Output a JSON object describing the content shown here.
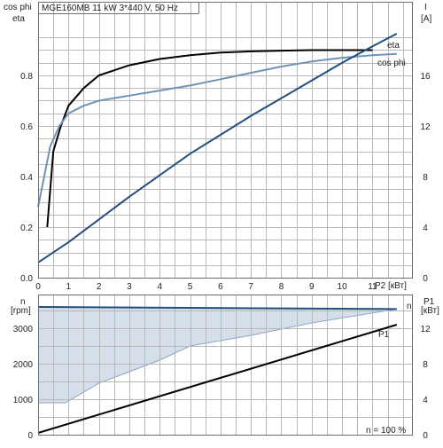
{
  "chart_data": [
    {
      "type": "line",
      "title": "MGE160MB   11 kW   3*440 V, 50 Hz",
      "xlabel": "P2 [кВт]",
      "ylabel_left": [
        "cos phi",
        "eta"
      ],
      "ylabel_right": [
        "I",
        "[A]"
      ],
      "xlim": [
        0,
        12.3
      ],
      "ylim_left": [
        0,
        1.0
      ],
      "ylim_right": [
        0,
        20
      ],
      "x_ticks": [
        "0",
        "1",
        "2",
        "3",
        "4",
        "5",
        "6",
        "7",
        "8",
        "9",
        "10",
        "11"
      ],
      "y_ticks_left": [
        "0.0",
        "0.2",
        "0.4",
        "0.6",
        "0.8"
      ],
      "y_ticks_right": [
        "0",
        "4",
        "8",
        "12",
        "16"
      ],
      "grid": true,
      "series": [
        {
          "name": "eta",
          "axis": "left",
          "color": "#000000",
          "points": [
            [
              0.3,
              0.2
            ],
            [
              0.5,
              0.5
            ],
            [
              0.75,
              0.6
            ],
            [
              1,
              0.68
            ],
            [
              1.5,
              0.75
            ],
            [
              2,
              0.8
            ],
            [
              3,
              0.84
            ],
            [
              4,
              0.865
            ],
            [
              5,
              0.88
            ],
            [
              6,
              0.89
            ],
            [
              7,
              0.895
            ],
            [
              8,
              0.898
            ],
            [
              9,
              0.9
            ],
            [
              10,
              0.9
            ],
            [
              11,
              0.9
            ]
          ]
        },
        {
          "name": "cos phi",
          "axis": "left",
          "color": "#6f94b6",
          "points": [
            [
              0,
              0.28
            ],
            [
              0.2,
              0.4
            ],
            [
              0.4,
              0.52
            ],
            [
              0.7,
              0.6
            ],
            [
              1,
              0.65
            ],
            [
              1.5,
              0.68
            ],
            [
              2,
              0.7
            ],
            [
              3,
              0.72
            ],
            [
              4,
              0.74
            ],
            [
              5,
              0.76
            ],
            [
              6,
              0.785
            ],
            [
              7,
              0.81
            ],
            [
              8,
              0.835
            ],
            [
              9,
              0.855
            ],
            [
              10,
              0.87
            ],
            [
              11,
              0.88
            ],
            [
              11.8,
              0.885
            ]
          ]
        },
        {
          "name": "I",
          "axis": "right",
          "color": "#224f7e",
          "points": [
            [
              0,
              1.2
            ],
            [
              1,
              2.8
            ],
            [
              2,
              4.6
            ],
            [
              3,
              6.4
            ],
            [
              4,
              8.1
            ],
            [
              5,
              9.8
            ],
            [
              6,
              11.3
            ],
            [
              7,
              12.8
            ],
            [
              8,
              14.2
            ],
            [
              9,
              15.6
            ],
            [
              10,
              17.0
            ],
            [
              11,
              18.3
            ],
            [
              11.8,
              19.3
            ]
          ]
        }
      ],
      "series_labels": [
        {
          "text": "eta",
          "color": "#000000"
        },
        {
          "text": "cos phi",
          "color": "#6f94b6"
        }
      ]
    },
    {
      "type": "line",
      "xlim": [
        0,
        12.3
      ],
      "ylabel_left": [
        "n",
        "[rpm]"
      ],
      "ylabel_right": [
        "P1",
        "[кВт]"
      ],
      "ylim_left": [
        0,
        3500
      ],
      "ylim_right": [
        0,
        14
      ],
      "y_ticks_left": [
        "0",
        "1000",
        "2000",
        "3000"
      ],
      "y_ticks_right": [
        "0",
        "4",
        "8",
        "12"
      ],
      "grid": true,
      "annotation": "n = 100 %",
      "shaded_region_color": "#d4dfe9",
      "shaded_region": {
        "upper": [
          [
            0,
            3600
          ],
          [
            11.8,
            3540
          ]
        ],
        "lower": [
          [
            0,
            900
          ],
          [
            0.9,
            900
          ],
          [
            2,
            1450
          ],
          [
            4,
            2100
          ],
          [
            5,
            2500
          ],
          [
            7,
            2800
          ],
          [
            9,
            3150
          ],
          [
            11.8,
            3540
          ]
        ]
      },
      "series": [
        {
          "name": "n",
          "axis": "left",
          "color": "#224f7e",
          "points": [
            [
              0,
              3600
            ],
            [
              11.8,
              3540
            ]
          ]
        },
        {
          "name": "P1",
          "axis": "right",
          "color": "#000000",
          "points": [
            [
              0,
              0.2
            ],
            [
              11.8,
              12.4
            ]
          ]
        }
      ]
    }
  ]
}
